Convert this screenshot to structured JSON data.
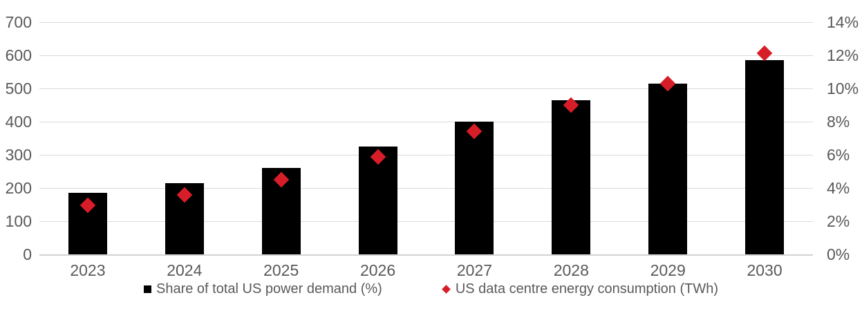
{
  "chart_data": {
    "type": "bar",
    "subtype": "combo-bar-scatter-dual-axis",
    "title": "",
    "categories": [
      "2023",
      "2024",
      "2025",
      "2026",
      "2027",
      "2028",
      "2029",
      "2030"
    ],
    "series": [
      {
        "name": "Share of total US power demand (%)",
        "type": "bar",
        "marker": "square",
        "axis": "right",
        "color": "#000000",
        "values": [
          3.7,
          4.3,
          5.2,
          6.5,
          8.0,
          9.3,
          10.3,
          11.7
        ]
      },
      {
        "name": "US data centre energy consumption (TWh)",
        "type": "scatter",
        "marker": "diamond",
        "axis": "left",
        "color": "#D71E28",
        "values": [
          148,
          180,
          225,
          293,
          371,
          450,
          514,
          607
        ]
      }
    ],
    "left_axis": {
      "min": 0,
      "max": 700,
      "ticks": [
        "700",
        "600",
        "500",
        "400",
        "300",
        "200",
        "100",
        "0"
      ]
    },
    "right_axis": {
      "min": 0,
      "max": 14,
      "ticks": [
        "14%",
        "12%",
        "10%",
        "8%",
        "6%",
        "4%",
        "2%",
        "0%"
      ]
    },
    "grid": true,
    "legend_position": "bottom",
    "colors": {
      "bar": "#000000",
      "marker": "#D71E28",
      "axis_text": "#595959",
      "gridline": "#D9D9D9",
      "background": "#FFFFFF"
    }
  }
}
